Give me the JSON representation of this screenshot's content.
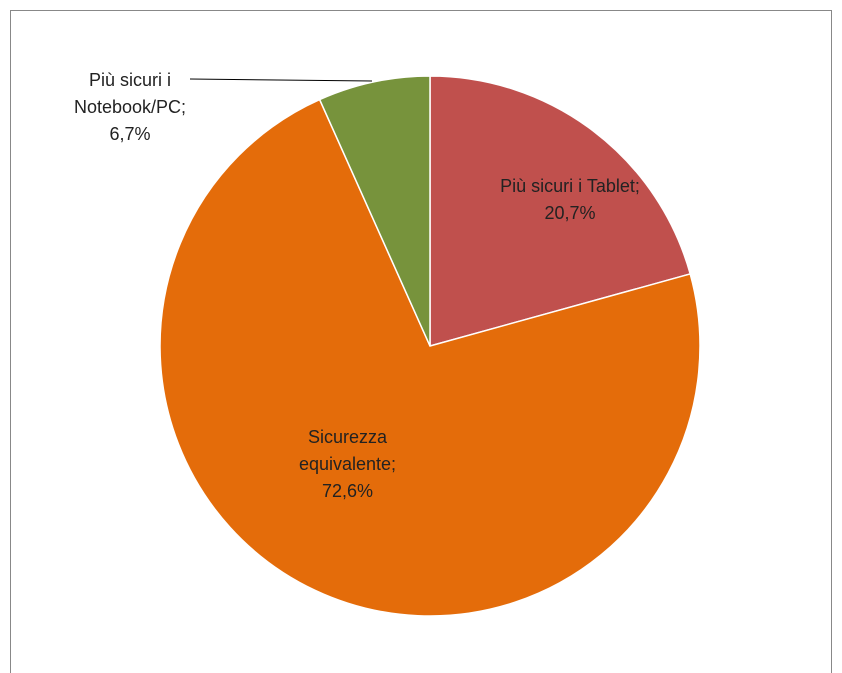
{
  "chart_data": {
    "type": "pie",
    "categories": [
      "Più sicuri i Tablet",
      "Sicurezza equivalente",
      "Più sicuri i Notebook/PC"
    ],
    "values": [
      20.7,
      72.6,
      6.7
    ],
    "value_labels": [
      "20,7%",
      "72,6%",
      "6,7%"
    ],
    "label_separator": ";",
    "colors": [
      "#c0504d",
      "#e46c0a",
      "#77933c"
    ]
  }
}
